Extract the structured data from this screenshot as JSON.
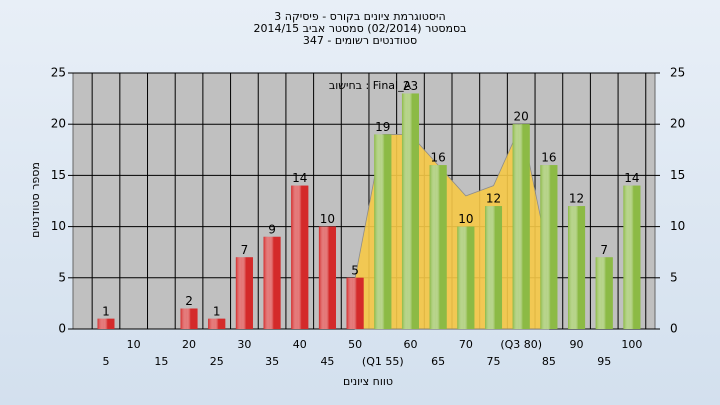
{
  "chart_data": {
    "type": "bar",
    "title": "היסטוגרמת ציונים בקורס - פיסיקה 3",
    "subtitle": "בסמסטר  (02/2014)  סמסטר אביב 2014/15",
    "subtitle2": "סטודנטים רשומים - 347",
    "annotation": "בחישוב : Final_A",
    "ylabel": "מספר סטודנטים",
    "xlabel": "טווח ציונים",
    "categories": [
      "5",
      "10",
      "15",
      "20",
      "25",
      "30",
      "35",
      "40",
      "45",
      "50",
      "(Q1 55)",
      "60",
      "65",
      "70",
      "75",
      "(Q3 80)",
      "85",
      "90",
      "95",
      "100"
    ],
    "values": [
      1,
      0,
      0,
      2,
      1,
      7,
      9,
      14,
      10,
      5,
      19,
      23,
      16,
      10,
      12,
      20,
      16,
      12,
      7,
      14
    ],
    "colors": [
      "#d42a2a",
      "#d42a2a",
      "#d42a2a",
      "#d42a2a",
      "#d42a2a",
      "#d42a2a",
      "#d42a2a",
      "#d42a2a",
      "#d42a2a",
      "#d42a2a",
      "#8cba45",
      "#8cba45",
      "#8cba45",
      "#8cba45",
      "#8cba45",
      "#8cba45",
      "#8cba45",
      "#8cba45",
      "#8cba45",
      "#8cba45"
    ],
    "band": {
      "color": "#f7c948",
      "values": [
        null,
        null,
        null,
        null,
        null,
        null,
        null,
        null,
        null,
        5,
        19,
        19,
        16,
        13,
        14,
        20,
        7,
        null,
        null,
        null
      ]
    },
    "ylim": [
      0,
      25
    ],
    "yticks": [
      0,
      5,
      10,
      15,
      20,
      25
    ],
    "y2lim": [
      0,
      25
    ],
    "y2ticks": [
      0,
      5,
      10,
      15,
      20,
      25
    ],
    "grid": true
  }
}
